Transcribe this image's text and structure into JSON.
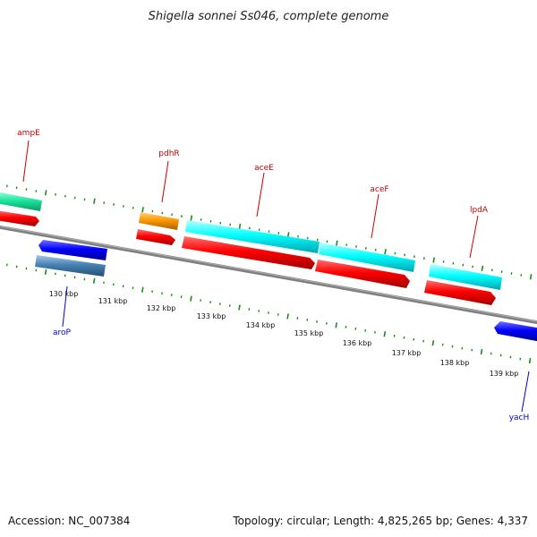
{
  "title": "Shigella sonnei Ss046, complete genome",
  "footer": {
    "accession": "Accession: NC_007384",
    "topology": "Topology: circular; Length: 4,825,265 bp; Genes: 4,337"
  },
  "colors": {
    "background": "#ffffff",
    "backbone": "#808080",
    "tick": "#1a8c1a",
    "label_plus": "#cc0000",
    "label_minus": "#0000cc",
    "cds": "#ff0000",
    "gene_cyan": "#00ffff",
    "gene_green": "#1ee6a0",
    "gene_orange": "#ff9900",
    "gene_blue": "#0000ff",
    "gene_steel": "#4682b4"
  },
  "gene_labels": [
    {
      "name": "ampE",
      "strand": "+"
    },
    {
      "name": "pdhR",
      "strand": "+"
    },
    {
      "name": "aceE",
      "strand": "+"
    },
    {
      "name": "aceF",
      "strand": "+"
    },
    {
      "name": "lpdA",
      "strand": "+"
    },
    {
      "name": "aroP",
      "strand": "-"
    },
    {
      "name": "yacH",
      "strand": "-"
    }
  ],
  "scale_labels": [
    "130 kbp",
    "131 kbp",
    "132 kbp",
    "133 kbp",
    "134 kbp",
    "135 kbp",
    "136 kbp",
    "137 kbp",
    "138 kbp",
    "139 kbp"
  ]
}
